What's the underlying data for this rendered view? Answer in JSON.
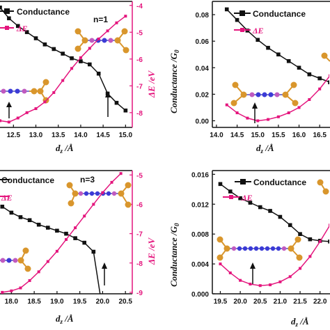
{
  "colors": {
    "conductance": "#111111",
    "energy": "#e4157d",
    "axis_right": "#e4157d",
    "molecule_gold": "#d9962c",
    "molecule_blue": "#3b3bd6",
    "molecule_pink": "#c05ac0"
  },
  "chart_data": [
    {
      "type": "line",
      "panel": "top-left",
      "annotation": "n=1",
      "xlabel": "d_z /Å",
      "y2label": "ΔE /eV",
      "x_ticks": [
        "12.5",
        "13.0",
        "13.5",
        "14.0",
        "14.5",
        "15.0"
      ],
      "xlim": [
        12.2,
        15.15
      ],
      "y2_ticks": [
        "-4",
        "-5",
        "-6",
        "-7",
        "-8"
      ],
      "y2lim": [
        -8.55,
        -3.85
      ],
      "legend": [
        "Conductance",
        "ΔE"
      ],
      "series": [
        {
          "name": "Conductance",
          "axis": "left",
          "x": [
            12.2,
            12.4,
            12.6,
            12.8,
            13.0,
            13.2,
            13.4,
            13.6,
            13.8,
            14.0,
            14.2,
            14.4,
            14.6,
            14.8,
            15.0
          ],
          "values": [
            0.98,
            0.91,
            0.86,
            0.82,
            0.78,
            0.74,
            0.71,
            0.68,
            0.65,
            0.63,
            0.61,
            0.55,
            0.42,
            0.36,
            0.31
          ]
        },
        {
          "name": "ΔE",
          "axis": "right",
          "x": [
            12.2,
            12.4,
            12.6,
            12.8,
            13.0,
            13.2,
            13.4,
            13.6,
            13.8,
            14.0,
            14.2,
            14.4,
            14.6,
            14.8,
            15.0
          ],
          "values": [
            -8.3,
            -8.35,
            -8.2,
            -8.0,
            -7.85,
            -7.6,
            -7.25,
            -6.8,
            -6.35,
            -5.95,
            -5.6,
            -5.25,
            -4.95,
            -4.65,
            -4.4
          ]
        }
      ]
    },
    {
      "type": "line",
      "panel": "top-right",
      "xlabel": "d_z /Å",
      "ylabel": "Conductance /G0",
      "x_ticks": [
        "14.0",
        "14.5",
        "15.0",
        "15.5",
        "16.0",
        "16.5"
      ],
      "xlim": [
        13.9,
        16.75
      ],
      "y_ticks": [
        "0.00",
        "0.02",
        "0.04",
        "0.06",
        "0.08"
      ],
      "ylim": [
        -0.005,
        0.09
      ],
      "legend": [
        "Conductance",
        "ΔE"
      ],
      "series": [
        {
          "name": "Conductance",
          "axis": "left",
          "x": [
            14.25,
            14.5,
            14.75,
            15.0,
            15.25,
            15.5,
            15.75,
            16.0,
            16.25,
            16.5,
            16.75
          ],
          "values": [
            0.084,
            0.076,
            0.068,
            0.061,
            0.055,
            0.05,
            0.045,
            0.04,
            0.035,
            0.032,
            0.029
          ]
        },
        {
          "name": "ΔE",
          "axis": "left-scaled",
          "x": [
            14.25,
            14.5,
            14.75,
            15.0,
            15.25,
            15.5,
            15.75,
            16.0,
            16.25,
            16.5,
            16.75
          ],
          "values": [
            0.012,
            0.006,
            0.002,
            0.0,
            0.001,
            0.003,
            0.006,
            0.01,
            0.016,
            0.024,
            0.034
          ]
        }
      ]
    },
    {
      "type": "line",
      "panel": "bottom-left",
      "annotation": "n=3",
      "xlabel": "d_z /Å",
      "y2label": "ΔE /eV",
      "x_ticks": [
        "18.0",
        "18.5",
        "19.0",
        "19.5",
        "20.0",
        "20.5"
      ],
      "xlim": [
        17.75,
        20.65
      ],
      "y2_ticks": [
        "-5",
        "-6",
        "-7",
        "-8",
        "-9"
      ],
      "y2lim": [
        -9.05,
        -4.85
      ],
      "legend": [
        "Conductance",
        "ΔE"
      ],
      "series": [
        {
          "name": "Conductance",
          "axis": "left",
          "x": [
            17.8,
            18.0,
            18.2,
            18.4,
            18.6,
            18.8,
            19.0,
            19.2,
            19.4,
            19.6,
            19.8,
            20.0,
            20.2,
            20.4
          ],
          "values": [
            0.78,
            0.74,
            0.71,
            0.69,
            0.66,
            0.64,
            0.62,
            0.6,
            0.57,
            0.54,
            0.48,
            0.09,
            0.09,
            0.08
          ]
        },
        {
          "name": "ΔE",
          "axis": "right",
          "x": [
            17.8,
            18.0,
            18.2,
            18.4,
            18.6,
            18.8,
            19.0,
            19.2,
            19.4,
            19.6,
            19.8,
            20.0,
            20.2,
            20.4
          ],
          "values": [
            -9.0,
            -8.95,
            -8.85,
            -8.6,
            -8.3,
            -7.95,
            -7.6,
            -7.2,
            -6.8,
            -6.4,
            -6.0,
            -5.6,
            -5.25,
            -4.95
          ]
        }
      ]
    },
    {
      "type": "line",
      "panel": "bottom-right",
      "xlabel": "d_z /Å",
      "ylabel": "Conductance /G0",
      "x_ticks": [
        "19.5",
        "20.0",
        "20.5",
        "21.0",
        "21.5",
        "22.0"
      ],
      "xlim": [
        19.3,
        22.25
      ],
      "y_ticks": [
        "0.000",
        "0.004",
        "0.008",
        "0.012",
        "0.016"
      ],
      "ylim": [
        0.0,
        0.0165
      ],
      "legend": [
        "Conductance",
        "ΔE"
      ],
      "series": [
        {
          "name": "Conductance",
          "axis": "left",
          "x": [
            19.5,
            19.75,
            20.0,
            20.25,
            20.5,
            20.75,
            21.0,
            21.25,
            21.5,
            21.75,
            22.0,
            22.25
          ],
          "values": [
            0.0147,
            0.0137,
            0.0128,
            0.0122,
            0.0116,
            0.0111,
            0.0103,
            0.0092,
            0.008,
            0.0073,
            0.0071,
            0.007
          ]
        },
        {
          "name": "ΔE",
          "axis": "left-scaled",
          "x": [
            19.5,
            19.75,
            20.0,
            20.25,
            20.5,
            20.75,
            21.0,
            21.25,
            21.5,
            21.75,
            22.0,
            22.25
          ],
          "values": [
            0.004,
            0.0028,
            0.0018,
            0.0013,
            0.0011,
            0.0012,
            0.0016,
            0.0023,
            0.0034,
            0.005,
            0.007,
            0.0092
          ]
        }
      ]
    }
  ],
  "labels": {
    "p1": {
      "legend1": "Conductance",
      "legend2": "ΔE",
      "n": "n=1",
      "xlabel_d": "d",
      "xlabel_z": "z",
      "xlabel_unit": " /Å",
      "y2label": "ΔE /eV"
    },
    "p2": {
      "legend1": "Conductance",
      "legend2": "ΔE",
      "xlabel_d": "d",
      "xlabel_z": "z",
      "xlabel_unit": " /Å",
      "ylabel": "Conductance /G",
      "ylabel_sub": "0"
    },
    "p3": {
      "legend1": "Conductance",
      "legend2": "ΔE",
      "n": "n=3",
      "xlabel_d": "d",
      "xlabel_z": "z",
      "xlabel_unit": " /Å",
      "y2label": "ΔE /eV"
    },
    "p4": {
      "legend1": "Conductance",
      "legend2": "ΔE",
      "xlabel_d": "d",
      "xlabel_z": "z",
      "xlabel_unit": " /Å",
      "ylabel": "Conductance /G",
      "ylabel_sub": "0"
    }
  }
}
